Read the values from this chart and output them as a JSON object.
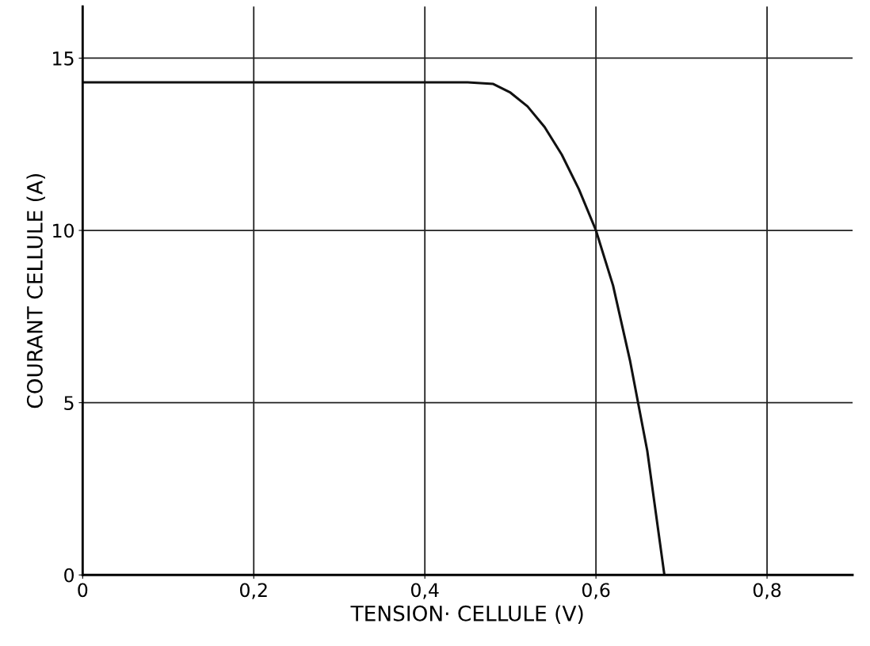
{
  "chart_data": {
    "type": "line",
    "xlabel": "TENSION· CELLULE (V)",
    "ylabel": "COURANT CELLULE (A)",
    "x": [
      0,
      0.1,
      0.2,
      0.3,
      0.4,
      0.45,
      0.48,
      0.5,
      0.52,
      0.54,
      0.56,
      0.58,
      0.6,
      0.62,
      0.64,
      0.66,
      0.68
    ],
    "series": [
      {
        "color": "#111111",
        "values": [
          14.3,
          14.3,
          14.3,
          14.3,
          14.3,
          14.3,
          14.25,
          14.0,
          13.6,
          13.0,
          12.2,
          11.2,
          10.0,
          8.4,
          6.2,
          3.6,
          0
        ]
      }
    ],
    "xlim": [
      0,
      0.9
    ],
    "ylim": [
      0,
      16.5
    ],
    "xticks": [
      0,
      {
        "value": 0.2,
        "label": "0,2"
      },
      {
        "value": 0.4,
        "label": "0,4"
      },
      {
        "value": 0.6,
        "label": "0,6"
      },
      {
        "value": 0.8,
        "label": "0,8"
      }
    ],
    "yticks": [
      0,
      5,
      10,
      15
    ],
    "grid": true,
    "marker": "none",
    "line_style": "solid",
    "legend": false
  }
}
